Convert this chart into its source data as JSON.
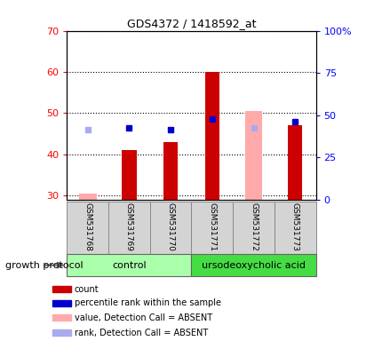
{
  "title": "GDS4372 / 1418592_at",
  "samples": [
    "GSM531768",
    "GSM531769",
    "GSM531770",
    "GSM531771",
    "GSM531772",
    "GSM531773"
  ],
  "ylim_left": [
    29,
    70
  ],
  "ylim_right": [
    0,
    100
  ],
  "yticks_left": [
    30,
    40,
    50,
    60,
    70
  ],
  "yticks_right": [
    0,
    25,
    50,
    75,
    100
  ],
  "ytick_labels_right": [
    "0",
    "25",
    "50",
    "75",
    "100%"
  ],
  "red_bars": [
    null,
    41,
    43,
    60,
    null,
    47
  ],
  "pink_bars": [
    30.5,
    null,
    null,
    null,
    50.5,
    null
  ],
  "blue_squares": [
    null,
    46.5,
    46,
    48.5,
    null,
    48
  ],
  "lavender_squares": [
    46,
    null,
    null,
    null,
    46.5,
    null
  ],
  "bar_bottom": 29,
  "bar_width": 0.35,
  "pink_bar_width": 0.42,
  "red_color": "#cc0000",
  "pink_color": "#ffaaaa",
  "blue_color": "#0000cc",
  "lavender_color": "#aaaaee",
  "legend_items": [
    {
      "label": "count",
      "color": "#cc0000"
    },
    {
      "label": "percentile rank within the sample",
      "color": "#0000cc"
    },
    {
      "label": "value, Detection Call = ABSENT",
      "color": "#ffaaaa"
    },
    {
      "label": "rank, Detection Call = ABSENT",
      "color": "#aaaaee"
    }
  ],
  "xlabel_growth": "growth protocol",
  "plot_bg": "#ffffff",
  "sample_box_color": "#d4d4d4",
  "control_color": "#aaffaa",
  "urso_color": "#44dd44"
}
